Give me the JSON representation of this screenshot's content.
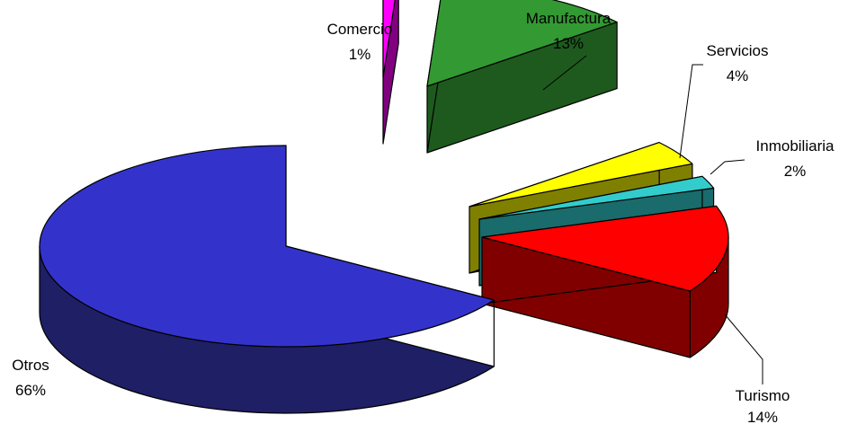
{
  "chart_data": {
    "type": "pie",
    "style": "3d-exploded",
    "slices": [
      {
        "label": "Comercio",
        "value": 1,
        "pct_text": "1%",
        "top_color": "#ff00ff",
        "side_color": "#800080"
      },
      {
        "label": "Manufactura",
        "value": 13,
        "pct_text": "13%",
        "top_color": "#339933",
        "side_color": "#1e5a1e"
      },
      {
        "label": "Servicios",
        "value": 4,
        "pct_text": "4%",
        "top_color": "#ffff00",
        "side_color": "#808000"
      },
      {
        "label": "Inmobiliaria",
        "value": 2,
        "pct_text": "2%",
        "top_color": "#33cccc",
        "side_color": "#1a6b6b"
      },
      {
        "label": "Turismo",
        "value": 14,
        "pct_text": "14%",
        "top_color": "#ff0000",
        "side_color": "#800000"
      },
      {
        "label": "Otros",
        "value": 66,
        "pct_text": "66%",
        "top_color": "#3333cc",
        "side_color": "#1f1f66"
      }
    ]
  }
}
